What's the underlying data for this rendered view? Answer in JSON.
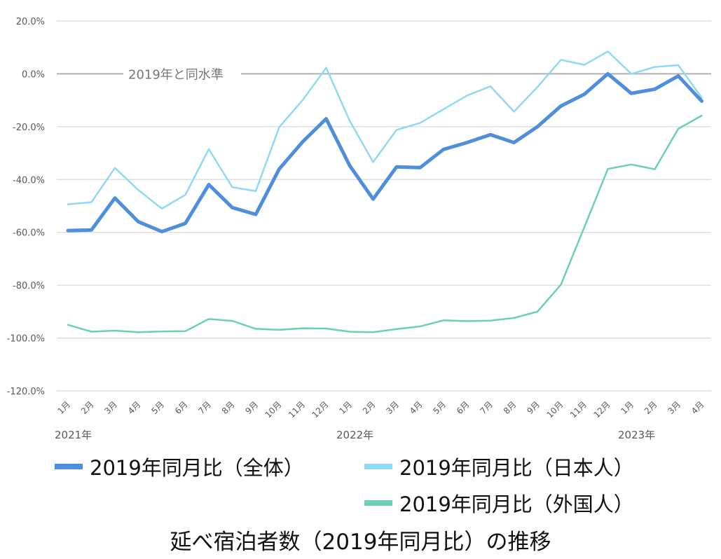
{
  "chart_data": {
    "type": "line",
    "title": "延べ宿泊者数（2019年同月比）の推移",
    "xlabel": "",
    "ylabel": "",
    "ylim": [
      -120,
      20
    ],
    "yticks": [
      "20.0%",
      "0.0%",
      "-20.0%",
      "-40.0%",
      "-60.0%",
      "-80.0%",
      "-100.0%",
      "-120.0%"
    ],
    "ytick_values": [
      20,
      0,
      -20,
      -40,
      -60,
      -80,
      -100,
      -120
    ],
    "grid": true,
    "legend_position": "bottom",
    "categories": [
      "1月",
      "2月",
      "3月",
      "4月",
      "5月",
      "6月",
      "7月",
      "8月",
      "9月",
      "10月",
      "11月",
      "12月",
      "1月",
      "2月",
      "3月",
      "4月",
      "5月",
      "6月",
      "7月",
      "8月",
      "9月",
      "10月",
      "11月",
      "12月",
      "1月",
      "2月",
      "3月",
      "4月"
    ],
    "year_labels": [
      {
        "label": "2021年",
        "index": 0
      },
      {
        "label": "2022年",
        "index": 12
      },
      {
        "label": "2023年",
        "index": 24
      }
    ],
    "annotation": {
      "text": "2019年と同水準",
      "y": 0
    },
    "series": [
      {
        "name": "2019年同月比（全体）",
        "color": "#4F8EDC",
        "width": 5,
        "values": [
          -59.3,
          -59.1,
          -47.0,
          -56.0,
          -59.7,
          -56.6,
          -41.9,
          -50.6,
          -53.2,
          -36.0,
          -25.7,
          -17.0,
          -34.7,
          -47.4,
          -35.2,
          -35.5,
          -28.6,
          -26.0,
          -23.0,
          -26.0,
          -20.0,
          -12.2,
          -7.7,
          0.0,
          -7.4,
          -5.8,
          -0.8,
          -10.3
        ]
      },
      {
        "name": "2019年同月比（日本人）",
        "color": "#8ED9F6",
        "width": 2.5,
        "values": [
          -49.4,
          -48.6,
          -35.6,
          -44.0,
          -51.0,
          -45.8,
          -28.5,
          -42.9,
          -44.4,
          -20.2,
          -9.9,
          2.3,
          -17.7,
          -33.4,
          -21.2,
          -18.6,
          -13.4,
          -8.2,
          -4.7,
          -14.3,
          -5.0,
          5.3,
          3.4,
          8.5,
          0.0,
          2.6,
          3.3,
          -9.0
        ]
      },
      {
        "name": "2019年同月比（外国人）",
        "color": "#6DCFB5",
        "width": 2.5,
        "values": [
          -95.0,
          -97.6,
          -97.2,
          -97.8,
          -97.5,
          -97.4,
          -92.8,
          -93.5,
          -96.5,
          -96.9,
          -96.3,
          -96.4,
          -97.6,
          -97.8,
          -96.6,
          -95.6,
          -93.3,
          -93.6,
          -93.4,
          -92.4,
          -90.0,
          -79.8,
          -58.0,
          -36.0,
          -34.3,
          -36.1,
          -20.8,
          -15.8
        ]
      }
    ]
  },
  "legend": {
    "items": [
      {
        "label": "2019年同月比（全体）",
        "color": "#4F8EDC"
      },
      {
        "label": "2019年同月比（日本人）",
        "color": "#8ED9F6"
      },
      {
        "label": "2019年同月比（外国人）",
        "color": "#6DCFB5"
      }
    ]
  },
  "title": "延べ宿泊者数（2019年同月比）の推移"
}
